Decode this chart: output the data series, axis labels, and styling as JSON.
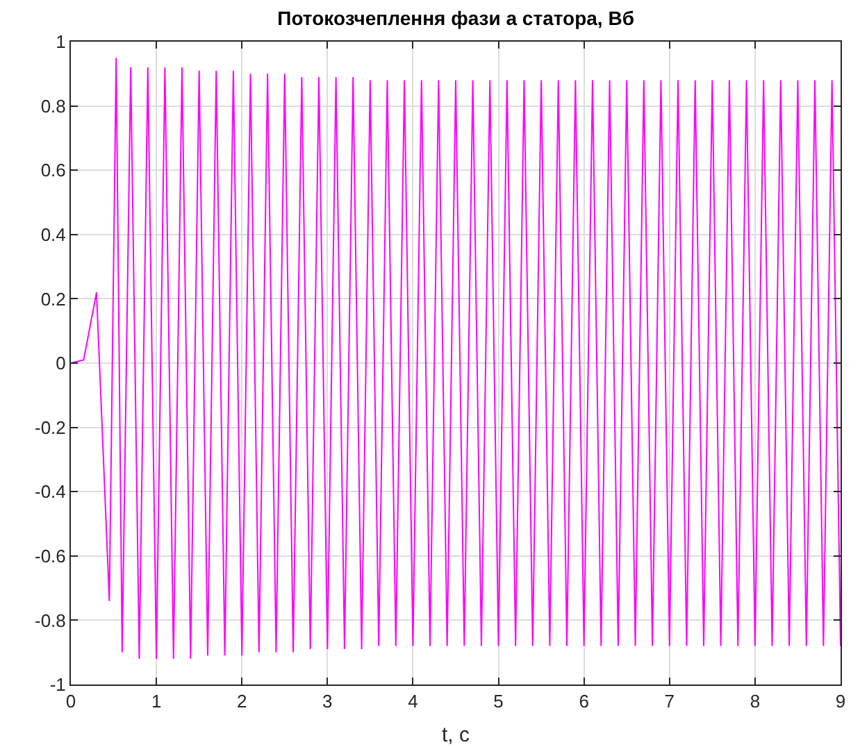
{
  "chart_data": {
    "type": "line",
    "title": "Потокозчеплення фази а статора, Вб",
    "xlabel": "t, c",
    "x": [
      0,
      0.15,
      0.3,
      0.45,
      0.53,
      0.6,
      0.7,
      0.8,
      0.9,
      1,
      1.1,
      1.2,
      1.3,
      1.4,
      1.5,
      1.6,
      1.7,
      1.8,
      1.9,
      2,
      2.1,
      2.2,
      2.3,
      2.4,
      2.5,
      2.6,
      2.7,
      2.8,
      2.9,
      3,
      3.1,
      3.2,
      3.3,
      3.4,
      3.5,
      3.6,
      3.7,
      3.8,
      3.9,
      4,
      4.1,
      4.2,
      4.3,
      4.4,
      4.5,
      4.6,
      4.7,
      4.8,
      4.9,
      5,
      5.1,
      5.2,
      5.3,
      5.4,
      5.5,
      5.6,
      5.7,
      5.8,
      5.9,
      6,
      6.1,
      6.2,
      6.3,
      6.4,
      6.5,
      6.6,
      6.7,
      6.8,
      6.9,
      7,
      7.1,
      7.2,
      7.3,
      7.4,
      7.5,
      7.6,
      7.7,
      7.8,
      7.9,
      8,
      8.1,
      8.2,
      8.3,
      8.4,
      8.5,
      8.6,
      8.7,
      8.8,
      8.9,
      9
    ],
    "series": [
      {
        "color": "#ff00ff",
        "values": [
          0,
          0.01,
          0.22,
          -0.74,
          0.95,
          -0.9,
          0.92,
          -0.92,
          0.92,
          -0.92,
          0.92,
          -0.92,
          0.92,
          -0.92,
          0.91,
          -0.91,
          0.91,
          -0.91,
          0.91,
          -0.91,
          0.9,
          -0.9,
          0.9,
          -0.9,
          0.9,
          -0.9,
          0.89,
          -0.89,
          0.89,
          -0.89,
          0.89,
          -0.89,
          0.89,
          -0.89,
          0.88,
          -0.88,
          0.88,
          -0.88,
          0.88,
          -0.88,
          0.88,
          -0.88,
          0.88,
          -0.88,
          0.88,
          -0.88,
          0.88,
          -0.88,
          0.88,
          -0.88,
          0.88,
          -0.88,
          0.88,
          -0.88,
          0.88,
          -0.88,
          0.88,
          -0.88,
          0.88,
          -0.88,
          0.88,
          -0.88,
          0.88,
          -0.88,
          0.88,
          -0.88,
          0.88,
          -0.88,
          0.88,
          -0.88,
          0.88,
          -0.88,
          0.88,
          -0.88,
          0.88,
          -0.88,
          0.88,
          -0.88,
          0.88,
          -0.88,
          0.88,
          -0.88,
          0.88,
          -0.88,
          0.88,
          -0.88,
          0.88,
          -0.88,
          0.88,
          -0.88
        ]
      }
    ],
    "xlim": [
      0,
      9
    ],
    "xticks": [
      0,
      1,
      2,
      3,
      4,
      5,
      6,
      7,
      8,
      9
    ],
    "ylim": [
      -1,
      1
    ],
    "yticks": [
      -1,
      -0.8,
      -0.6,
      -0.4,
      -0.2,
      0,
      0.2,
      0.4,
      0.6,
      0.8,
      1
    ],
    "grid": true,
    "marker": "none",
    "line_style": "solid"
  }
}
